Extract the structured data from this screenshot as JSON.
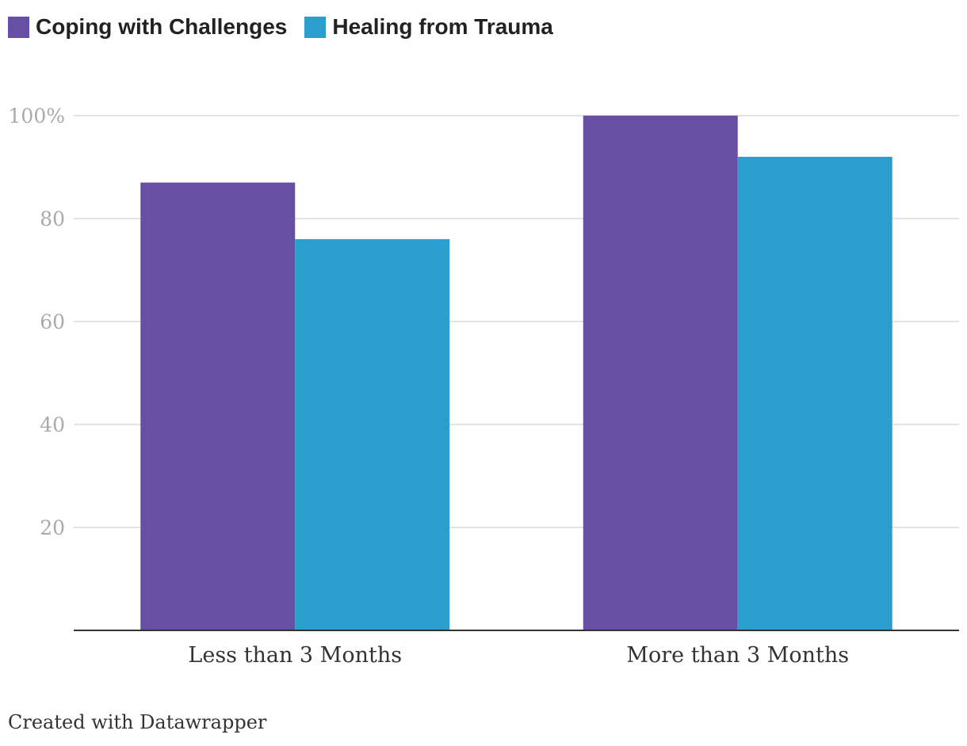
{
  "legend": [
    {
      "label": "Coping with Challenges",
      "color": "#6750a4"
    },
    {
      "label": "Healing from Trauma",
      "color": "#2a9fcd"
    }
  ],
  "chart_data": {
    "type": "bar",
    "categories": [
      "Less than 3 Months",
      "More than 3 Months"
    ],
    "series": [
      {
        "name": "Coping with Challenges",
        "values": [
          87,
          100
        ],
        "color": "#6750a4"
      },
      {
        "name": "Healing from Trauma",
        "values": [
          76,
          92
        ],
        "color": "#2a9fcd"
      }
    ],
    "ylim": [
      0,
      100
    ],
    "yticks": [
      20,
      40,
      60,
      80,
      100
    ],
    "ytick_labels": [
      "20",
      "40",
      "60",
      "80",
      "100%"
    ],
    "grid": true,
    "legend_position": "top-left"
  },
  "footer": {
    "text": "Created with Datawrapper"
  }
}
